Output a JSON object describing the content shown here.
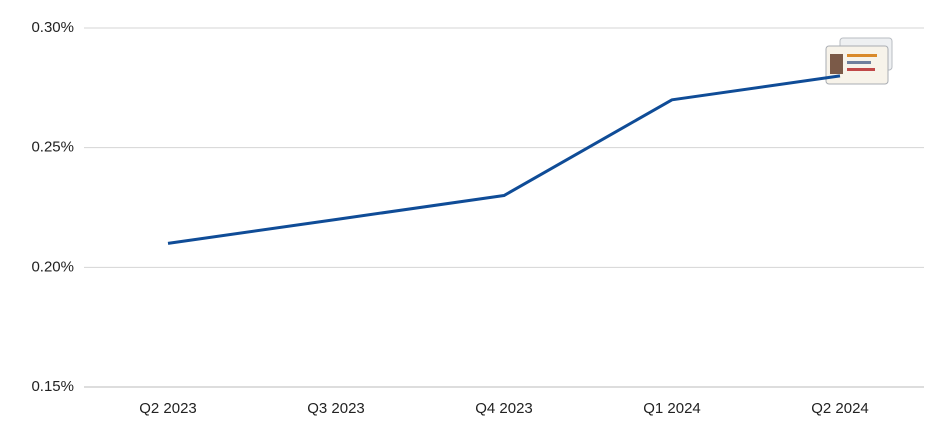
{
  "chart_data": {
    "type": "line",
    "categories": [
      "Q2 2023",
      "Q3 2023",
      "Q4 2023",
      "Q1 2024",
      "Q2 2024"
    ],
    "values": [
      0.21,
      0.22,
      0.23,
      0.27,
      0.28
    ],
    "color": "#0f4c97",
    "ylim": [
      0.15,
      0.3
    ],
    "yticks": [
      {
        "value": 0.15,
        "label": "0.15%"
      },
      {
        "value": 0.2,
        "label": "0.20%"
      },
      {
        "value": 0.25,
        "label": "0.25%"
      },
      {
        "value": 0.3,
        "label": "0.30%"
      }
    ],
    "grid": true
  }
}
